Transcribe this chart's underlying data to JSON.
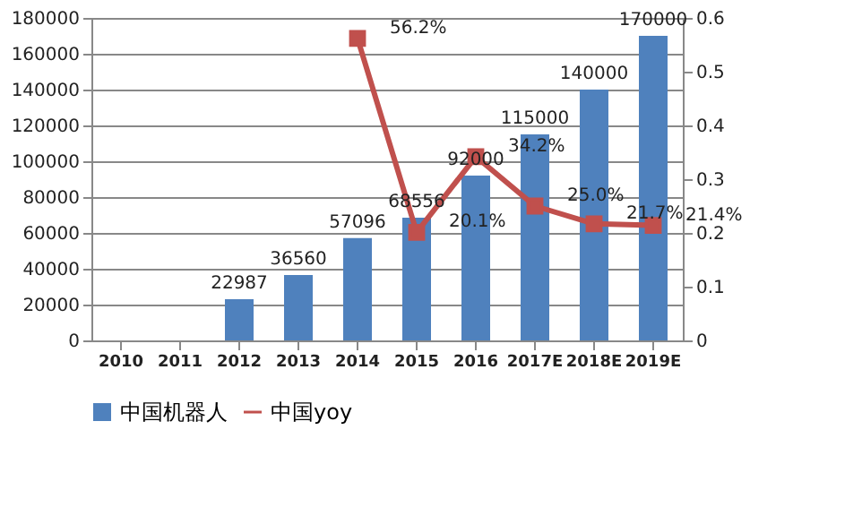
{
  "chart_data": {
    "type": "bar",
    "categories": [
      "2010",
      "2011",
      "2012",
      "2013",
      "2014",
      "2015",
      "2016",
      "2017E",
      "2018E",
      "2019E"
    ],
    "series": [
      {
        "name": "中国机器人",
        "color": "#4f81bd",
        "values": [
          null,
          null,
          22987,
          36560,
          57096,
          68556,
          92000,
          115000,
          140000,
          170000
        ],
        "value_labels": [
          null,
          null,
          "22987",
          "36560",
          "57096",
          "68556",
          "92000",
          "115000",
          "140000",
          "170000"
        ]
      },
      {
        "name": "中国yoy",
        "type": "line",
        "axis": "y2",
        "color": "#c0504d",
        "marker": "square",
        "values": [
          null,
          null,
          null,
          null,
          0.562,
          0.201,
          0.342,
          0.25,
          0.217,
          0.214
        ],
        "value_labels": [
          null,
          null,
          null,
          null,
          "56.2%",
          "20.1%",
          "34.2%",
          "25.0%",
          "21.7%",
          "21.4%"
        ]
      }
    ],
    "ylim": [
      0,
      180000
    ],
    "yticks": [
      0,
      20000,
      40000,
      60000,
      80000,
      100000,
      120000,
      140000,
      160000,
      180000
    ],
    "y2lim": [
      0,
      0.6
    ],
    "y2ticks": [
      0,
      0.1,
      0.2,
      0.3,
      0.4,
      0.5,
      0.6
    ],
    "grid": "y",
    "legend": "bottom"
  }
}
